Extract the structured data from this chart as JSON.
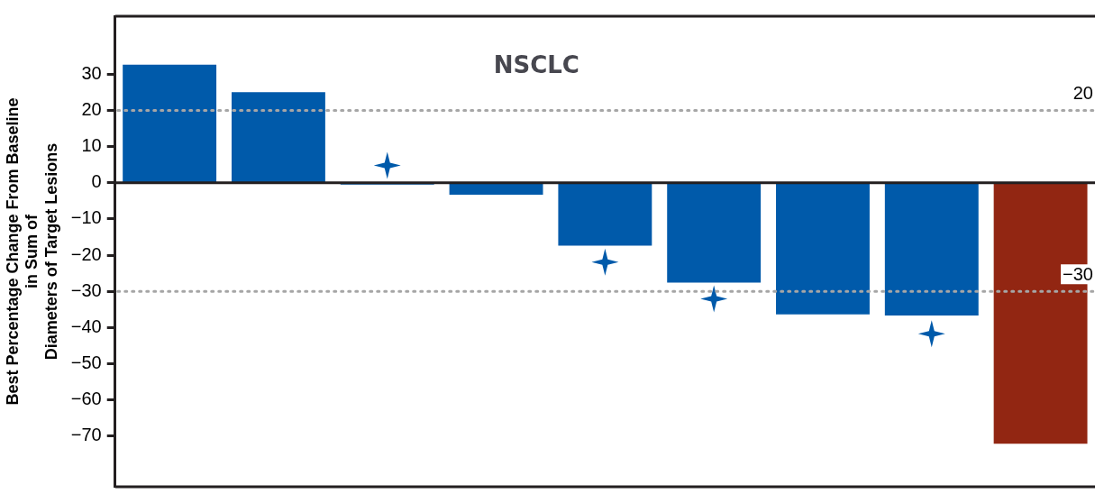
{
  "chart_data": {
    "type": "bar",
    "title": "NSCLC",
    "ylabel": "Best Percentage Change From Baseline\nin Sum of\nDiameters of Target Lesions",
    "categories": [
      null,
      null,
      null,
      null,
      null,
      null,
      null,
      null,
      null
    ],
    "series": [
      {
        "values": [
          32.6,
          25,
          -0.5,
          -3.3,
          -17.4,
          -27.6,
          -36.4,
          -36.7,
          -72.1
        ],
        "colors": [
          "#005aaa",
          "#005aaa",
          "#005aaa",
          "#005aaa",
          "#005aaa",
          "#005aaa",
          "#005aaa",
          "#005aaa",
          "#922612"
        ]
      },
      {
        "type": "scatter",
        "marker": "star",
        "color": "#005aaa",
        "values": [
          null,
          null,
          4.8,
          null,
          -21.9,
          -32.1,
          null,
          -41.7,
          null
        ]
      }
    ],
    "ylim": [
      -84,
      46
    ],
    "yticks": [
      30,
      20,
      10,
      0,
      -10,
      -20,
      -30,
      -40,
      -50,
      -60,
      -70
    ],
    "ref_lines": [
      {
        "axis": "y",
        "value": 20,
        "label": "20",
        "color": "#a6a6a6",
        "line_style": "dotted"
      },
      {
        "axis": "y",
        "value": -30,
        "label": "−30",
        "color": "#a6a6a6",
        "line_style": "dotted"
      }
    ],
    "tick_labels": "y",
    "grid": false,
    "legend": false
  }
}
